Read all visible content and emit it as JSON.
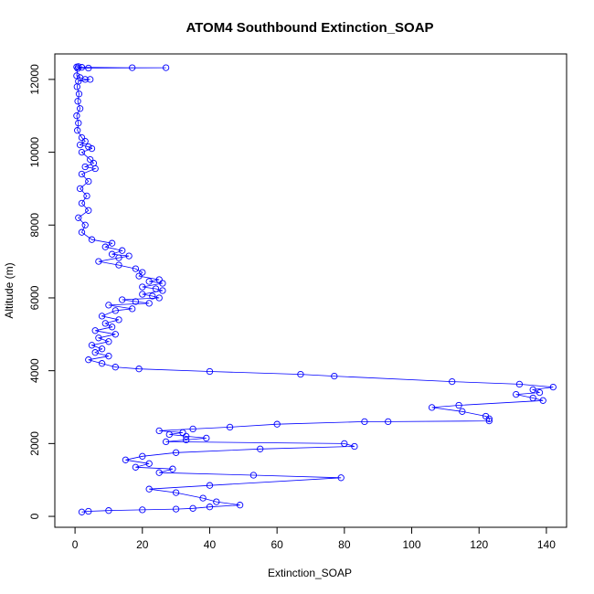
{
  "chart_data": {
    "type": "line",
    "title": "ATOM4 Southbound Extinction_SOAP",
    "xlabel": "Extinction_SOAP",
    "ylabel": "Altitude (m)",
    "xlim": [
      -6,
      146
    ],
    "ylim": [
      -300,
      12700
    ],
    "xticks": [
      0,
      20,
      40,
      60,
      80,
      100,
      120,
      140
    ],
    "yticks": [
      0,
      2000,
      4000,
      6000,
      8000,
      10000,
      12000
    ],
    "markers": "open-circle",
    "grid": false,
    "legend": "none",
    "colors": {
      "series": "#0000ff",
      "axis": "#000000"
    },
    "series": [
      {
        "points": [
          [
            1.0,
            12350
          ],
          [
            0.5,
            12340
          ],
          [
            2.0,
            12330
          ],
          [
            17.0,
            12320
          ],
          [
            27.0,
            12320
          ],
          [
            4.0,
            12310
          ],
          [
            0.8,
            12300
          ],
          [
            0.5,
            12100
          ],
          [
            1.5,
            12050
          ],
          [
            3.0,
            12000
          ],
          [
            4.5,
            12000
          ],
          [
            1.0,
            11950
          ],
          [
            0.6,
            11800
          ],
          [
            1.2,
            11600
          ],
          [
            0.8,
            11400
          ],
          [
            1.5,
            11200
          ],
          [
            0.5,
            11000
          ],
          [
            1.0,
            10800
          ],
          [
            0.7,
            10600
          ],
          [
            2.0,
            10400
          ],
          [
            3.0,
            10300
          ],
          [
            1.5,
            10200
          ],
          [
            4.0,
            10150
          ],
          [
            5.0,
            10100
          ],
          [
            2.0,
            10000
          ],
          [
            4.5,
            9800
          ],
          [
            5.5,
            9700
          ],
          [
            3.0,
            9600
          ],
          [
            6.0,
            9550
          ],
          [
            2.0,
            9400
          ],
          [
            4.0,
            9200
          ],
          [
            1.5,
            9000
          ],
          [
            3.5,
            8800
          ],
          [
            2.0,
            8600
          ],
          [
            4.0,
            8400
          ],
          [
            1.0,
            8200
          ],
          [
            3.0,
            8000
          ],
          [
            2.0,
            7800
          ],
          [
            5.0,
            7600
          ],
          [
            11.0,
            7500
          ],
          [
            9.0,
            7400
          ],
          [
            14.0,
            7300
          ],
          [
            11.0,
            7200
          ],
          [
            16.0,
            7150
          ],
          [
            13.0,
            7100
          ],
          [
            7.0,
            7000
          ],
          [
            13.0,
            6900
          ],
          [
            18.0,
            6800
          ],
          [
            20.0,
            6700
          ],
          [
            19.0,
            6600
          ],
          [
            25.0,
            6500
          ],
          [
            22.0,
            6450
          ],
          [
            26.0,
            6400
          ],
          [
            20.0,
            6300
          ],
          [
            24.0,
            6250
          ],
          [
            26.0,
            6200
          ],
          [
            20.0,
            6100
          ],
          [
            23.0,
            6050
          ],
          [
            25.0,
            6000
          ],
          [
            14.0,
            5950
          ],
          [
            18.0,
            5900
          ],
          [
            22.0,
            5850
          ],
          [
            10.0,
            5800
          ],
          [
            17.0,
            5700
          ],
          [
            12.0,
            5650
          ],
          [
            8.0,
            5500
          ],
          [
            13.0,
            5400
          ],
          [
            9.0,
            5300
          ],
          [
            11.0,
            5200
          ],
          [
            6.0,
            5100
          ],
          [
            12.0,
            5000
          ],
          [
            7.0,
            4900
          ],
          [
            10.0,
            4800
          ],
          [
            5.0,
            4700
          ],
          [
            8.0,
            4600
          ],
          [
            6.0,
            4500
          ],
          [
            10.0,
            4400
          ],
          [
            4.0,
            4300
          ],
          [
            8.0,
            4200
          ],
          [
            12.0,
            4100
          ],
          [
            19.0,
            4050
          ],
          [
            40.0,
            3980
          ],
          [
            67.0,
            3900
          ],
          [
            77.0,
            3850
          ],
          [
            112.0,
            3700
          ],
          [
            132.0,
            3630
          ],
          [
            142.0,
            3550
          ],
          [
            136.0,
            3480
          ],
          [
            138.0,
            3400
          ],
          [
            131.0,
            3350
          ],
          [
            136.0,
            3250
          ],
          [
            139.0,
            3180
          ],
          [
            114.0,
            3050
          ],
          [
            106.0,
            2990
          ],
          [
            115.0,
            2880
          ],
          [
            122.0,
            2750
          ],
          [
            123.0,
            2680
          ],
          [
            123.0,
            2620
          ],
          [
            93.0,
            2600
          ],
          [
            86.0,
            2600
          ],
          [
            60.0,
            2530
          ],
          [
            46.0,
            2450
          ],
          [
            35.0,
            2400
          ],
          [
            25.0,
            2350
          ],
          [
            32.0,
            2300
          ],
          [
            28.0,
            2250
          ],
          [
            33.0,
            2200
          ],
          [
            39.0,
            2150
          ],
          [
            33.0,
            2100
          ],
          [
            27.0,
            2050
          ],
          [
            80.0,
            2000
          ],
          [
            83.0,
            1920
          ],
          [
            55.0,
            1850
          ],
          [
            30.0,
            1750
          ],
          [
            20.0,
            1650
          ],
          [
            15.0,
            1550
          ],
          [
            22.0,
            1450
          ],
          [
            18.0,
            1350
          ],
          [
            29.0,
            1300
          ],
          [
            25.0,
            1200
          ],
          [
            53.0,
            1130
          ],
          [
            79.0,
            1060
          ],
          [
            40.0,
            850
          ],
          [
            22.0,
            750
          ],
          [
            30.0,
            650
          ],
          [
            38.0,
            500
          ],
          [
            42.0,
            400
          ],
          [
            49.0,
            310
          ],
          [
            40.0,
            260
          ],
          [
            35.0,
            220
          ],
          [
            30.0,
            200
          ],
          [
            20.0,
            180
          ],
          [
            10.0,
            160
          ],
          [
            4.0,
            140
          ],
          [
            2.0,
            120
          ]
        ]
      }
    ]
  }
}
